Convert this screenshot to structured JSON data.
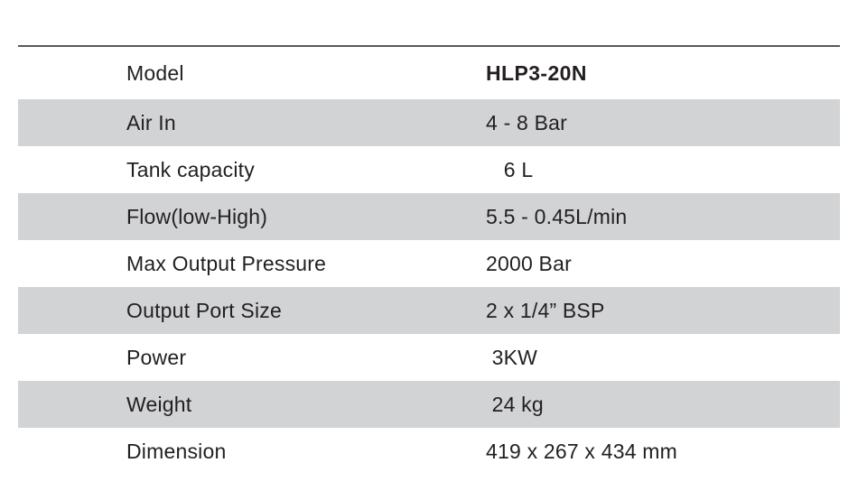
{
  "colors": {
    "row_shaded_bg": "#d1d3d4",
    "row_plain_bg": "#ffffff",
    "text": "#231f20",
    "top_rule": "#58595b"
  },
  "spec_table": {
    "rows": [
      {
        "label": "Model",
        "value": "HLP3-20N",
        "shaded": false,
        "value_bold": true
      },
      {
        "label": "Air In",
        "value": "4 - 8 Bar",
        "shaded": true,
        "value_bold": false
      },
      {
        "label": "Tank capacity",
        "value": "   6 L",
        "shaded": false,
        "value_bold": false
      },
      {
        "label": "Flow(low-High)",
        "value": "5.5 - 0.45L/min",
        "shaded": true,
        "value_bold": false
      },
      {
        "label": "Max Output Pressure",
        "value": "2000 Bar",
        "shaded": false,
        "value_bold": false
      },
      {
        "label": "Output Port Size",
        "value": "2 x 1/4” BSP",
        "shaded": true,
        "value_bold": false
      },
      {
        "label": "Power",
        "value": " 3KW",
        "shaded": false,
        "value_bold": false
      },
      {
        "label": "Weight",
        "value": " 24 kg",
        "shaded": true,
        "value_bold": false
      },
      {
        "label": "Dimension",
        "value": "419 x 267 x 434 mm",
        "shaded": false,
        "value_bold": false
      }
    ]
  }
}
